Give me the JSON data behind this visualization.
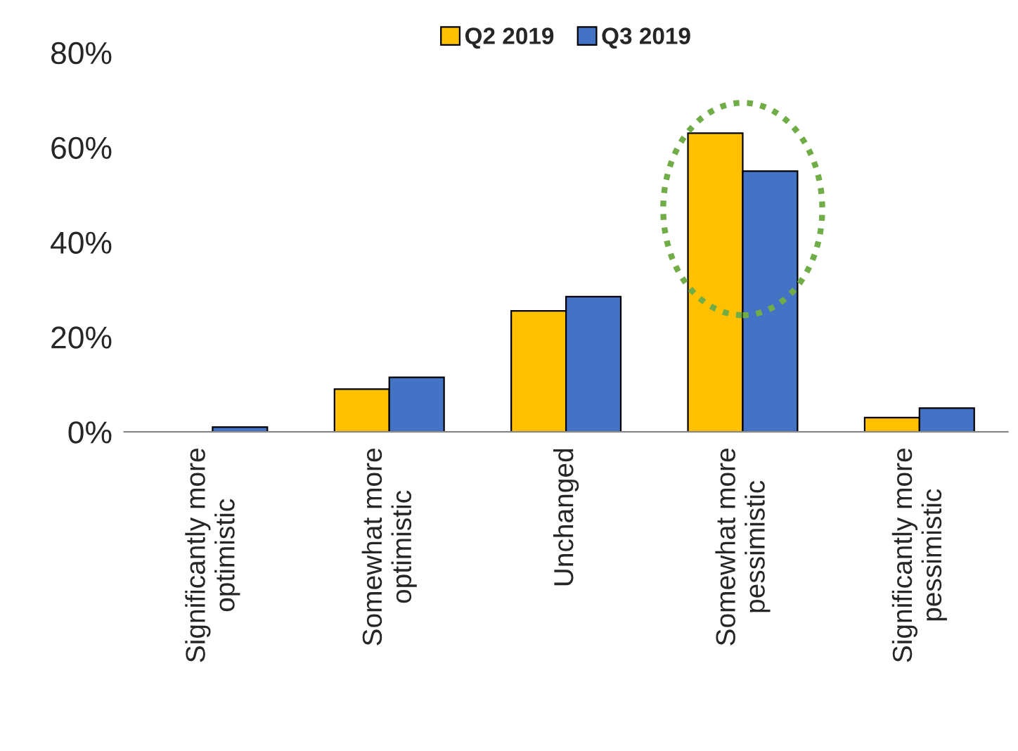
{
  "chart_data": {
    "type": "bar",
    "categories": [
      "Significantly more\noptimistic",
      "Somewhat more\noptimistic",
      "Unchanged",
      "Somewhat more\npessimistic",
      "Significantly more\npessimistic"
    ],
    "series": [
      {
        "name": "Q2 2019",
        "color": "#ffc000",
        "values": [
          null,
          9,
          25.5,
          63,
          3
        ]
      },
      {
        "name": "Q3 2019",
        "color": "#4472c4",
        "values": [
          1,
          11.5,
          28.5,
          55,
          5
        ]
      }
    ],
    "ylim": [
      0,
      80
    ],
    "yticks": [
      {
        "value": 0,
        "label": "0%"
      },
      {
        "value": 20,
        "label": "20%"
      },
      {
        "value": 40,
        "label": "40%"
      },
      {
        "value": 60,
        "label": "60%"
      },
      {
        "value": 80,
        "label": "80%"
      }
    ],
    "grid": false,
    "legend": "top"
  }
}
